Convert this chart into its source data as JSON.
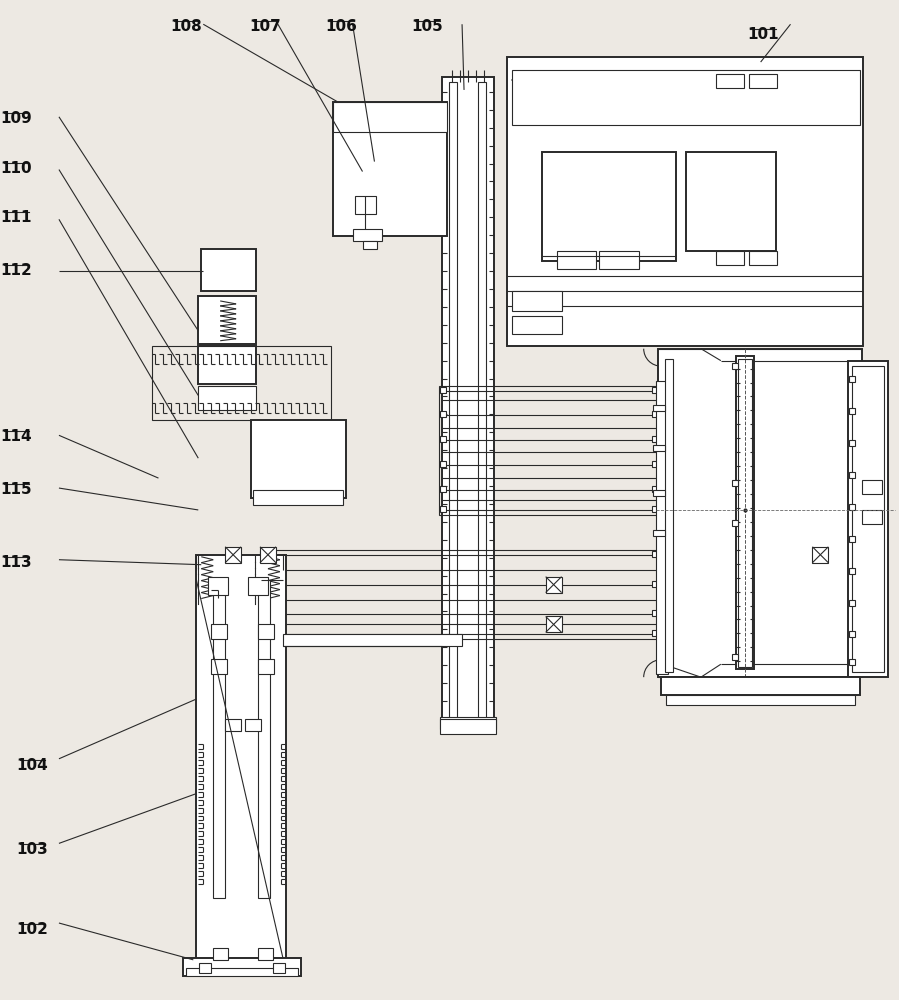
{
  "bg_color": "#ede9e3",
  "line_color": "#2a2a2a",
  "lw": 0.8,
  "lw2": 1.4,
  "labels": [
    [
      "101",
      772,
      28,
      760,
      60,
      820,
      28
    ],
    [
      "102",
      35,
      925,
      190,
      962,
      35,
      925
    ],
    [
      "103",
      35,
      845,
      195,
      795,
      35,
      845
    ],
    [
      "104",
      35,
      760,
      195,
      700,
      35,
      760
    ],
    [
      "105",
      432,
      22,
      462,
      88,
      432,
      22
    ],
    [
      "106",
      348,
      22,
      372,
      160,
      348,
      22
    ],
    [
      "107",
      272,
      22,
      360,
      170,
      272,
      22
    ],
    [
      "108",
      192,
      22,
      332,
      100,
      192,
      22
    ],
    [
      "109",
      22,
      115,
      155,
      330,
      22,
      115
    ],
    [
      "110",
      22,
      168,
      155,
      395,
      22,
      168
    ],
    [
      "111",
      22,
      218,
      155,
      458,
      22,
      218
    ],
    [
      "112",
      22,
      270,
      192,
      270,
      22,
      270
    ],
    [
      "113",
      22,
      560,
      198,
      565,
      22,
      560
    ],
    [
      "114",
      22,
      435,
      155,
      478,
      22,
      435
    ],
    [
      "115",
      22,
      488,
      200,
      510,
      22,
      488
    ]
  ]
}
